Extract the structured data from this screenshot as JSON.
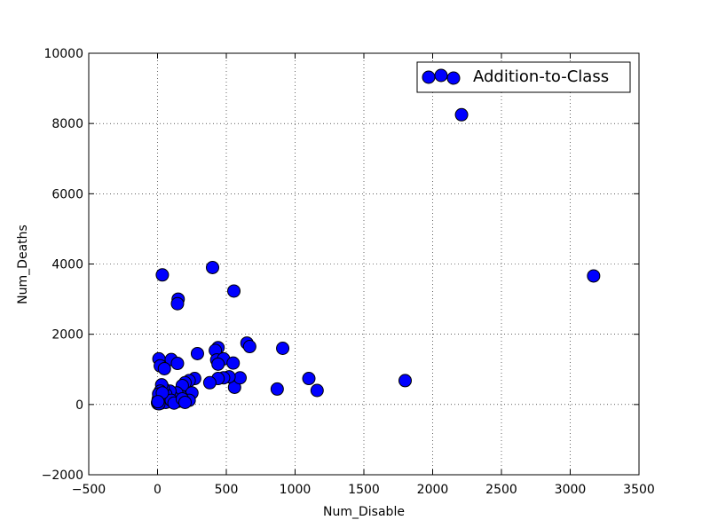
{
  "chart_data": {
    "type": "scatter",
    "xlabel": "Num_Disable",
    "ylabel": "Num_Deaths",
    "xlim": [
      -500,
      3500
    ],
    "ylim": [
      -2000,
      10000
    ],
    "xticks": [
      -500,
      0,
      500,
      1000,
      1500,
      2000,
      2500,
      3000,
      3500
    ],
    "yticks": [
      -2000,
      0,
      2000,
      4000,
      6000,
      8000,
      10000
    ],
    "xtick_labels": [
      "−500",
      "0",
      "500",
      "1000",
      "1500",
      "2000",
      "2500",
      "3000",
      "3500"
    ],
    "ytick_labels": [
      "−2000",
      "0",
      "2000",
      "4000",
      "6000",
      "8000",
      "10000"
    ],
    "grid": true,
    "legend_position": "top-right",
    "marker_color": "#0000ff",
    "series": [
      {
        "name": "Addition-to-Class",
        "points": [
          [
            2210,
            8250
          ],
          [
            3170,
            3660
          ],
          [
            400,
            3900
          ],
          [
            35,
            3690
          ],
          [
            555,
            3230
          ],
          [
            150,
            3000
          ],
          [
            145,
            2870
          ],
          [
            650,
            1750
          ],
          [
            670,
            1650
          ],
          [
            440,
            1620
          ],
          [
            420,
            1540
          ],
          [
            910,
            1600
          ],
          [
            10,
            1300
          ],
          [
            100,
            1280
          ],
          [
            145,
            1170
          ],
          [
            430,
            1270
          ],
          [
            480,
            1300
          ],
          [
            440,
            1150
          ],
          [
            550,
            1180
          ],
          [
            20,
            1100
          ],
          [
            50,
            1020
          ],
          [
            290,
            1450
          ],
          [
            1800,
            680
          ],
          [
            1100,
            740
          ],
          [
            1160,
            400
          ],
          [
            870,
            440
          ],
          [
            560,
            490
          ],
          [
            600,
            760
          ],
          [
            520,
            790
          ],
          [
            480,
            760
          ],
          [
            440,
            740
          ],
          [
            380,
            620
          ],
          [
            270,
            740
          ],
          [
            230,
            680
          ],
          [
            200,
            620
          ],
          [
            180,
            540
          ],
          [
            250,
            330
          ],
          [
            230,
            120
          ],
          [
            170,
            240
          ],
          [
            150,
            90
          ],
          [
            140,
            330
          ],
          [
            110,
            200
          ],
          [
            90,
            380
          ],
          [
            70,
            140
          ],
          [
            60,
            290
          ],
          [
            40,
            480
          ],
          [
            30,
            560
          ],
          [
            20,
            380
          ],
          [
            10,
            250
          ],
          [
            5,
            150
          ],
          [
            0,
            50
          ],
          [
            2,
            30
          ],
          [
            15,
            90
          ],
          [
            30,
            200
          ],
          [
            45,
            90
          ],
          [
            25,
            40
          ],
          [
            8,
            300
          ],
          [
            60,
            60
          ],
          [
            100,
            120
          ],
          [
            120,
            40
          ],
          [
            180,
            160
          ],
          [
            200,
            60
          ],
          [
            10,
            20
          ],
          [
            35,
            330
          ],
          [
            3,
            80
          ]
        ]
      }
    ]
  }
}
